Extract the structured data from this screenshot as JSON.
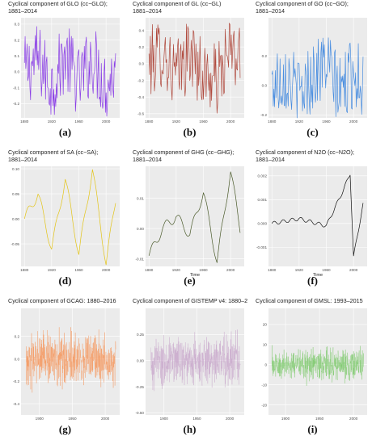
{
  "chart_data": [
    {
      "type": "line",
      "title": "Cyclical component of GLO (cc−GLO);\n1881–2014",
      "xlabel": "",
      "ylabel": "",
      "xlim": [
        1875,
        2020
      ],
      "ylim": [
        -0.29,
        0.34
      ],
      "xticks": [
        1880,
        1920,
        1960,
        2000
      ],
      "yticks": [
        -0.2,
        -0.1,
        0.0,
        0.1,
        0.2,
        0.3
      ],
      "ytick_labels": [
        "-0.2",
        "-0.1",
        "0.0",
        "0.1",
        "0.2",
        "0.3"
      ],
      "series": [
        {
          "color": "#8a3ee6",
          "kind": "annual",
          "x": [
            1880,
            1900,
            1920,
            1940,
            1960,
            1980,
            2000,
            2014
          ],
          "y": [
            0.0,
            0.23,
            -0.25,
            0.3,
            -0.2,
            0.26,
            -0.26,
            0.05
          ]
        }
      ],
      "label": "(a)"
    },
    {
      "type": "line",
      "title": "Cyclical component of GL (cc−GL)\n1881–2014",
      "xlabel": "",
      "ylabel": "",
      "xlim": [
        1875,
        2020
      ],
      "ylim": [
        -0.65,
        0.55
      ],
      "xticks": [
        1880,
        1920,
        1960,
        2000
      ],
      "yticks": [
        -0.6,
        -0.4,
        -0.2,
        0.0,
        0.2,
        0.4
      ],
      "ytick_labels": [
        "-0.6",
        "-0.4",
        "-0.2",
        "0.0",
        "0.2",
        "0.4"
      ],
      "series": [
        {
          "color": "#b04a3e",
          "kind": "annual",
          "x": [
            1880,
            1900,
            1920,
            1940,
            1960,
            1980,
            2000,
            2014
          ],
          "y": [
            0.0,
            0.45,
            -0.45,
            0.4,
            -0.38,
            -0.58,
            0.45,
            0.0
          ]
        }
      ],
      "label": "(b)"
    },
    {
      "type": "line",
      "title": "Cyclical component of GO (cc−GO);\n1881–2014",
      "xlabel": "",
      "ylabel": "",
      "xlim": [
        1875,
        2020
      ],
      "ylim": [
        -0.22,
        0.46
      ],
      "xticks": [
        1880,
        1920,
        1960,
        2000
      ],
      "yticks": [
        -0.2,
        0.0,
        0.2
      ],
      "ytick_labels": [
        "-0.2",
        "0.0",
        "0.2"
      ],
      "series": [
        {
          "color": "#4a8ee0",
          "kind": "annual",
          "x": [
            1880,
            1900,
            1920,
            1940,
            1960,
            1980,
            2000,
            2014
          ],
          "y": [
            0.0,
            0.25,
            -0.18,
            0.2,
            0.42,
            -0.15,
            0.28,
            0.02
          ]
        }
      ],
      "label": "(c)"
    },
    {
      "type": "line",
      "title": "Cyclical component of SA (cc−SA);\n1881–2014",
      "xlabel": "",
      "ylabel": "",
      "xlim": [
        1875,
        2020
      ],
      "ylim": [
        -0.095,
        0.105
      ],
      "xticks": [
        1880,
        1920,
        1960,
        2000
      ],
      "yticks": [
        -0.05,
        0.0,
        0.05,
        0.1
      ],
      "ytick_labels": [
        "-0.05",
        "0.00",
        "0.05",
        "0.10"
      ],
      "series": [
        {
          "color": "#e3c417",
          "kind": "smooth",
          "x": [
            1880,
            1900,
            1920,
            1940,
            1960,
            1980,
            2000,
            2014
          ],
          "y": [
            0.0,
            0.05,
            -0.06,
            0.08,
            -0.07,
            0.1,
            -0.09,
            0.04
          ]
        }
      ],
      "label": "(d)"
    },
    {
      "type": "line",
      "title": "Cyclical component of GHG (cc−GHG);\n1881–2014",
      "xlabel": "Time",
      "ylabel": "",
      "xlim": [
        1875,
        2020
      ],
      "ylim": [
        -0.0125,
        0.0205
      ],
      "xticks": [
        1880,
        1920,
        1960,
        2000
      ],
      "yticks": [
        -0.01,
        0.0,
        0.01
      ],
      "ytick_labels": [
        "-0.01",
        "0.00",
        "0.01"
      ],
      "series": [
        {
          "color": "#4a5a2a",
          "kind": "smooth",
          "x": [
            1880,
            1900,
            1920,
            1940,
            1960,
            1980,
            2000,
            2014
          ],
          "y": [
            -0.009,
            0.0,
            0.004,
            -0.002,
            0.012,
            -0.011,
            0.019,
            0.0
          ]
        }
      ],
      "label": "(e)"
    },
    {
      "type": "line",
      "title": "Cyclical component of N2O (cc−N2O);\n1881–2014",
      "xlabel": "Time",
      "ylabel": "",
      "xlim": [
        1875,
        2020
      ],
      "ylim": [
        -0.0018,
        0.0024
      ],
      "xticks": [
        1880,
        1920,
        1960,
        2000
      ],
      "yticks": [
        -0.001,
        0.0,
        0.001,
        0.002
      ],
      "ytick_labels": [
        "-0.001",
        "0.000",
        "0.001",
        "0.002"
      ],
      "series": [
        {
          "color": "#111111",
          "kind": "n2o",
          "x": [
            1880,
            1920,
            1960,
            1985,
            1995,
            2000,
            2014
          ],
          "y": [
            0.0,
            0.0002,
            -0.0001,
            0.0014,
            0.0021,
            -0.0014,
            0.0008
          ]
        }
      ],
      "label": "(f)"
    },
    {
      "type": "line",
      "title": "Cyclical component of GCAG: 1880–2016",
      "xlabel": "",
      "ylabel": "",
      "xlim": [
        1872,
        2022
      ],
      "ylim": [
        -0.5,
        0.45
      ],
      "xticks": [
        1900,
        1950,
        2000
      ],
      "yticks": [
        -0.4,
        -0.2,
        0.0,
        0.2
      ],
      "ytick_labels": [
        "-0.4",
        "-0.2",
        "0.0",
        "0.2"
      ],
      "series": [
        {
          "color": "#f5955a",
          "kind": "monthly",
          "amp": 0.16,
          "x": [
            1880,
            1950,
            2016
          ],
          "y": [
            0.0,
            0.0,
            0.0
          ]
        }
      ],
      "label": "(g)"
    },
    {
      "type": "line",
      "title": "Cyclical component of GISTEMP v4: 1880–2",
      "xlabel": "",
      "ylabel": "",
      "xlim": [
        1872,
        2022
      ],
      "ylim": [
        -0.52,
        0.5
      ],
      "xticks": [
        1900,
        1950,
        2000
      ],
      "yticks": [
        -0.5,
        -0.25,
        0.0,
        0.25
      ],
      "ytick_labels": [
        "-0.50",
        "-0.25",
        "0.00",
        "0.25"
      ],
      "series": [
        {
          "color": "#c9a8cc",
          "kind": "monthly",
          "amp": 0.17,
          "x": [
            1880,
            1950,
            2016
          ],
          "y": [
            0.0,
            0.0,
            0.0
          ]
        }
      ],
      "label": "(h)"
    },
    {
      "type": "line",
      "title": "Cyclical component of GMSL: 1993–2015",
      "xlabel": "",
      "ylabel": "",
      "xlim": [
        1875,
        2020
      ],
      "ylim": [
        -25,
        28
      ],
      "xticks": [
        1900,
        1950,
        2000
      ],
      "yticks": [
        -20,
        -10,
        0,
        10,
        20
      ],
      "ytick_labels": [
        "-20",
        "-10",
        "0",
        "10",
        "20"
      ],
      "series": [
        {
          "color": "#7bc96a",
          "kind": "monthly",
          "amp": 6,
          "x": [
            1880,
            1950,
            2015
          ],
          "y": [
            0.0,
            0.0,
            0.0
          ]
        }
      ],
      "label": "(i)"
    }
  ]
}
